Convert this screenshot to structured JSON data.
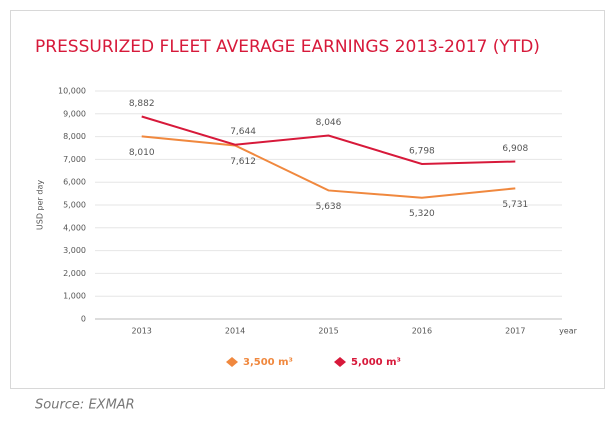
{
  "chart_data": {
    "type": "line",
    "title": "PRESSURIZED FLEET AVERAGE EARNINGS 2013-2017 (YTD)",
    "y_label": "USD per day",
    "x_label": "year",
    "source": "Source: EXMAR",
    "categories": [
      "2013",
      "2014",
      "2015",
      "2016",
      "2017"
    ],
    "series": [
      {
        "name": "3,500 m³",
        "color": "#f0883e",
        "values": [
          8010,
          7612,
          5638,
          5320,
          5731
        ],
        "value_labels": [
          "8,010",
          "7,612",
          "5,638",
          "5,320",
          "5,731"
        ]
      },
      {
        "name": "5,000 m³",
        "color": "#d7193a",
        "values": [
          8882,
          7644,
          8046,
          6798,
          6908
        ],
        "value_labels": [
          "8,882",
          "7,644",
          "8,046",
          "6,798",
          "6,908"
        ]
      }
    ],
    "ylim": [
      0,
      10000
    ],
    "yticks": [
      0,
      {
        "value": 1000,
        "label": "1,000"
      },
      {
        "value": 2000,
        "label": "2,000"
      },
      {
        "value": 3000,
        "label": "3,000"
      },
      {
        "value": 4000,
        "label": "4,000"
      },
      {
        "value": 5000,
        "label": "5,000"
      },
      {
        "value": 6000,
        "label": "6,000"
      },
      {
        "value": 7000,
        "label": "7,000"
      },
      {
        "value": 8000,
        "label": "8,000"
      },
      {
        "value": 9000,
        "label": "9,000"
      },
      {
        "value": 10000,
        "label": "10,000"
      }
    ],
    "grid": true,
    "legend": "bottom"
  }
}
